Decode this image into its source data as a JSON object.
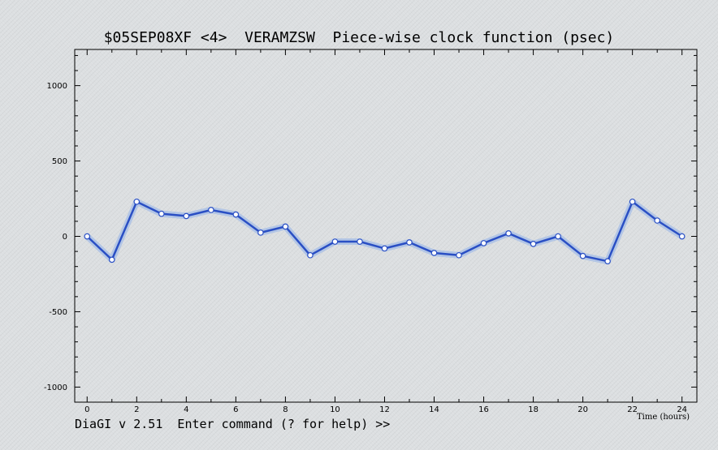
{
  "window": {
    "title": "$05SEP08XF <4>  VERAMZSW  Piece-wise clock function (psec)",
    "prompt": "DiaGI v 2.51  Enter command (? for help) >>"
  },
  "colors": {
    "background": "#dcdfe1",
    "line": "#2a4fc4",
    "line_glow": "#a9bfe6",
    "marker_fill": "#ffffff",
    "axis": "#000000"
  },
  "chart_data": {
    "type": "line",
    "title": "$05SEP08XF <4>  VERAMZSW  Piece-wise clock function (psec)",
    "xlabel": "Time (hours)",
    "ylabel": "",
    "xlim": [
      -0.5,
      24.6
    ],
    "ylim": [
      -1100,
      1240
    ],
    "x_ticks": [
      0,
      2,
      4,
      6,
      8,
      10,
      12,
      14,
      16,
      18,
      20,
      22,
      24
    ],
    "y_ticks": [
      -1000,
      -500,
      0,
      500,
      1000
    ],
    "grid": false,
    "series": [
      {
        "x": [
          0,
          1,
          2,
          3,
          4,
          5,
          6,
          7,
          8,
          9,
          10,
          11,
          12,
          13,
          14,
          15,
          16,
          17,
          18,
          19,
          20,
          21,
          22,
          23,
          24
        ],
        "values": [
          0,
          -155,
          230,
          150,
          135,
          175,
          145,
          25,
          65,
          -125,
          -35,
          -35,
          -80,
          -40,
          -110,
          -125,
          -45,
          20,
          -50,
          0,
          -130,
          -165,
          230,
          105,
          0
        ]
      }
    ]
  }
}
